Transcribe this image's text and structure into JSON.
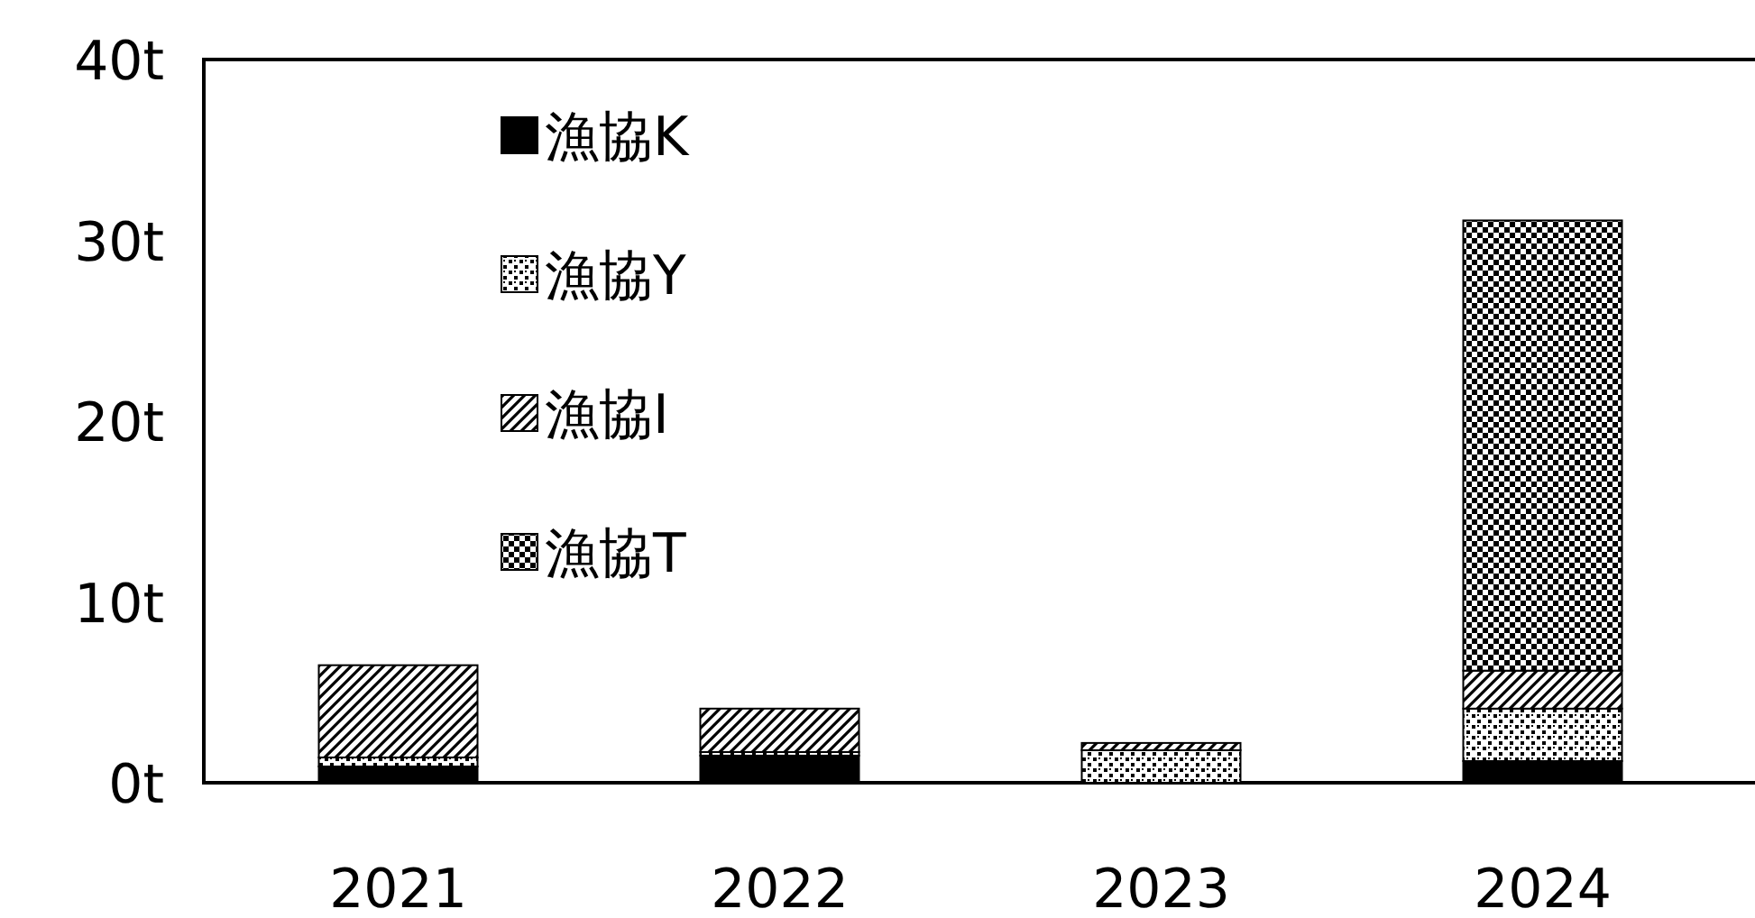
{
  "chart_data": {
    "type": "bar",
    "stacked": true,
    "categories": [
      "2021",
      "2022",
      "2023",
      "2024"
    ],
    "series": [
      {
        "name": "漁協K",
        "color": "#000000",
        "values": [
          0.9,
          1.5,
          null,
          1.2
        ]
      },
      {
        "name": "漁協Y",
        "color": "#000000",
        "values": [
          0.5,
          0.2,
          1.8,
          2.9
        ]
      },
      {
        "name": "漁協I",
        "color": "#000000",
        "values": [
          5.1,
          2.4,
          0.4,
          2.1
        ]
      },
      {
        "name": "漁協T",
        "color": "#000000",
        "values": [
          0,
          0,
          0,
          24.9
        ]
      }
    ],
    "ylim": [
      0,
      40
    ],
    "yticks": [
      {
        "value": 0,
        "label": "0t"
      },
      {
        "value": 10,
        "label": "10t"
      },
      {
        "value": 20,
        "label": "20t"
      },
      {
        "value": 30,
        "label": "30t"
      },
      {
        "value": 40,
        "label": "40t"
      }
    ],
    "grid": false,
    "legend": "top left"
  }
}
